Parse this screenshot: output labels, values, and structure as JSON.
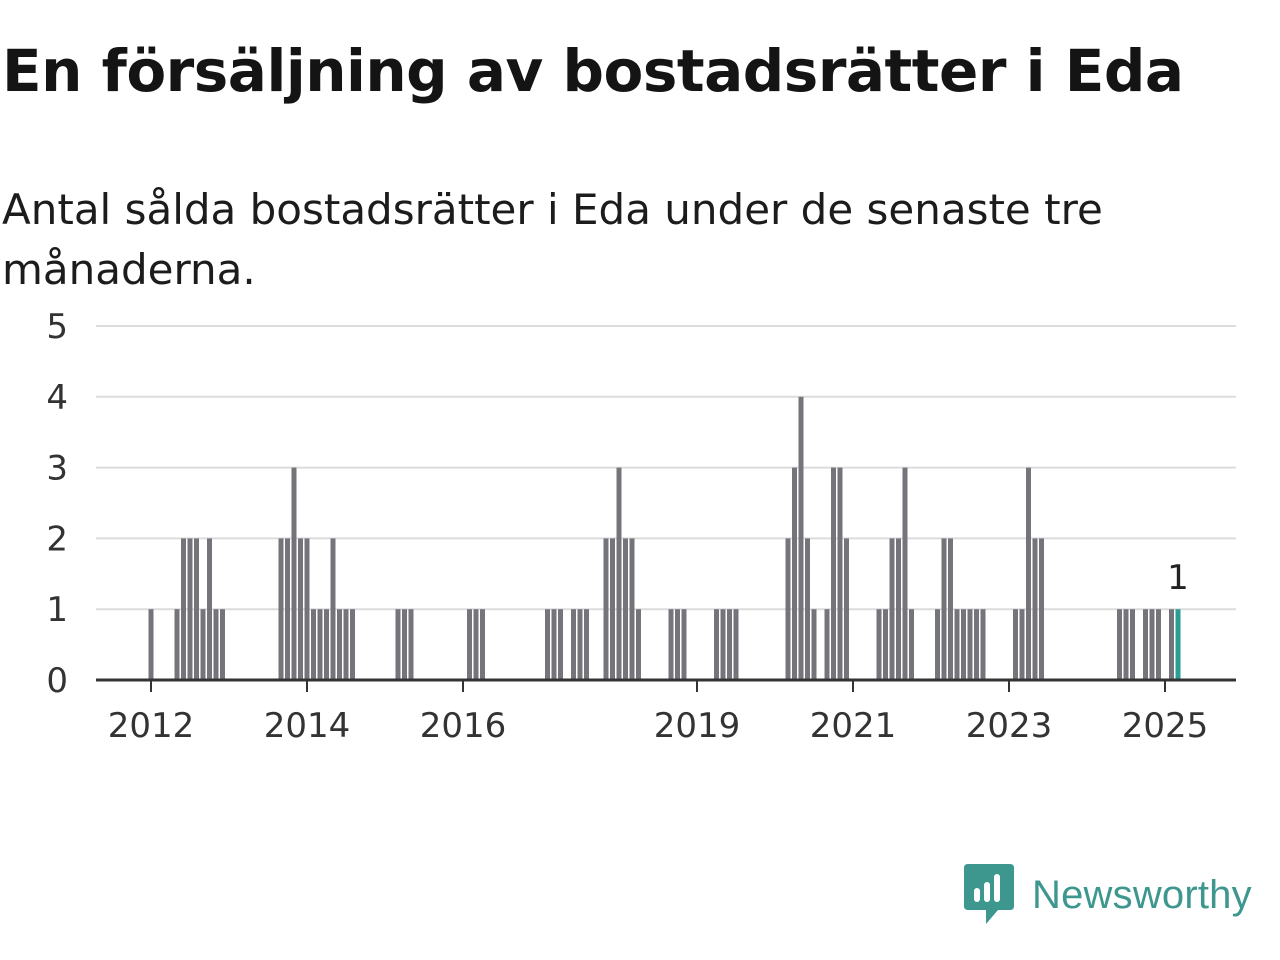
{
  "title": "En försäljning av bostadsrätter i Eda",
  "subtitle": "Antal sålda bostadsrätter i Eda under de senaste tre månaderna.",
  "brand": {
    "name": "Newsworthy",
    "icon": "newsworthy-logo-icon",
    "color": "#3d978f"
  },
  "chart_data": {
    "type": "bar",
    "title": "En försäljning av bostadsrätter i Eda",
    "subtitle": "Antal sålda bostadsrätter i Eda under de senaste tre månaderna.",
    "xlabel": "",
    "ylabel": "",
    "ylim": [
      0,
      5
    ],
    "yticks": [
      0,
      1,
      2,
      3,
      4,
      5
    ],
    "xtick_labels": [
      "2012",
      "2014",
      "2016",
      "2019",
      "2021",
      "2023",
      "2025"
    ],
    "grid": true,
    "bar_color": "#76747b",
    "highlight_color": "#2a9e95",
    "annotation": {
      "label": "1",
      "x": "2025-03"
    },
    "x": [
      "2012-01",
      "2012-05",
      "2012-06",
      "2012-07",
      "2012-08",
      "2012-09",
      "2012-10",
      "2012-11",
      "2012-12",
      "2013-09",
      "2013-10",
      "2013-11",
      "2013-12",
      "2014-01",
      "2014-02",
      "2014-03",
      "2014-04",
      "2014-05",
      "2014-06",
      "2014-07",
      "2014-08",
      "2015-03",
      "2015-04",
      "2015-05",
      "2016-02",
      "2016-03",
      "2016-04",
      "2017-02",
      "2017-03",
      "2017-04",
      "2017-06",
      "2017-07",
      "2017-08",
      "2017-11",
      "2017-12",
      "2018-01",
      "2018-02",
      "2018-03",
      "2018-04",
      "2018-09",
      "2018-10",
      "2018-11",
      "2019-04",
      "2019-05",
      "2019-06",
      "2019-07",
      "2020-03",
      "2020-04",
      "2020-05",
      "2020-06",
      "2020-07",
      "2020-09",
      "2020-10",
      "2020-11",
      "2020-12",
      "2021-05",
      "2021-06",
      "2021-07",
      "2021-08",
      "2021-09",
      "2021-10",
      "2022-02",
      "2022-03",
      "2022-04",
      "2022-05",
      "2022-06",
      "2022-07",
      "2022-08",
      "2022-09",
      "2023-02",
      "2023-03",
      "2023-04",
      "2023-05",
      "2023-06",
      "2024-06",
      "2024-07",
      "2024-08",
      "2024-10",
      "2024-11",
      "2024-12",
      "2025-02",
      "2025-03"
    ],
    "values": [
      1,
      1,
      2,
      2,
      2,
      1,
      2,
      1,
      1,
      2,
      2,
      3,
      2,
      2,
      1,
      1,
      1,
      2,
      1,
      1,
      1,
      1,
      1,
      1,
      1,
      1,
      1,
      1,
      1,
      1,
      1,
      1,
      1,
      2,
      2,
      3,
      2,
      2,
      1,
      1,
      1,
      1,
      1,
      1,
      1,
      1,
      2,
      3,
      4,
      2,
      1,
      1,
      3,
      3,
      2,
      1,
      1,
      2,
      2,
      3,
      1,
      1,
      2,
      2,
      1,
      1,
      1,
      1,
      1,
      1,
      1,
      3,
      2,
      2,
      1,
      1,
      1,
      1,
      1,
      1,
      1,
      1
    ]
  }
}
